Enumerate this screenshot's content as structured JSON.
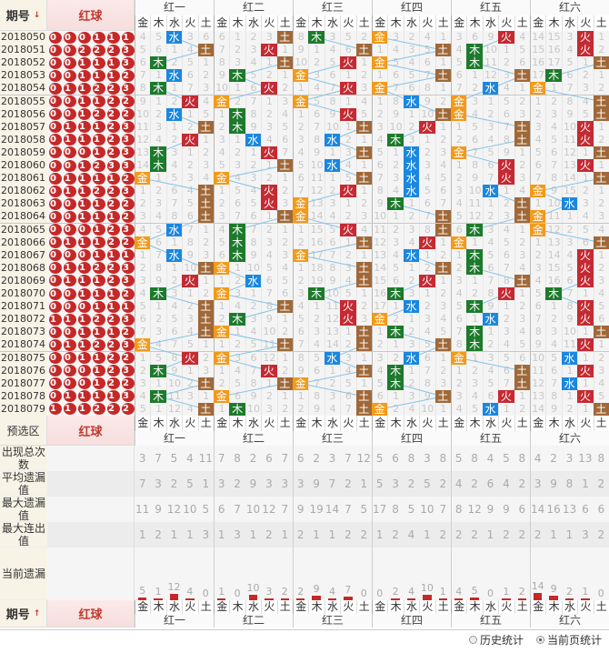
{
  "header": {
    "period_label": "期号",
    "period_sort_icon": "arrow-down-icon",
    "red_label": "红球",
    "groups": [
      "红一",
      "红二",
      "红三",
      "红四",
      "红五",
      "红六"
    ],
    "elements": [
      "金",
      "木",
      "水",
      "火",
      "土"
    ]
  },
  "element_colors": {
    "金": "#f29a1a",
    "木": "#1d7a2c",
    "水": "#1a87e0",
    "火": "#c52a32",
    "土": "#a06838"
  },
  "trend_line_color": "#86c3e6",
  "first_row_omissions": [
    [
      4,
      5,
      0,
      3,
      6
    ],
    [
      6,
      1,
      2,
      3,
      0
    ],
    [
      8,
      0,
      3,
      5,
      2
    ],
    [
      0,
      3,
      2,
      4,
      1
    ],
    [
      3,
      6,
      9,
      0,
      4
    ],
    [
      14,
      15,
      3,
      0,
      1
    ]
  ],
  "rows": [
    {
      "period": "2018050",
      "balls": "000111",
      "hits": "水土木金火火"
    },
    {
      "period": "2018051",
      "balls": "002223",
      "hits": "土火土土木火"
    },
    {
      "period": "2018052",
      "balls": "001113",
      "hits": "木土火金木土"
    },
    {
      "period": "2018053",
      "balls": "001112",
      "hits": "水木金土土木"
    },
    {
      "period": "2018054",
      "balls": "011223",
      "hits": "木火火金水金"
    },
    {
      "period": "2018055",
      "balls": "001122",
      "hits": "火金金水金土"
    },
    {
      "period": "2018056",
      "balls": "001222",
      "hits": "水木火土金土"
    },
    {
      "period": "2018057",
      "balls": "011123",
      "hits": "土木土火土火"
    },
    {
      "period": "2018058",
      "balls": "011123",
      "hits": "火水水木土火"
    },
    {
      "period": "2018059",
      "balls": "000123",
      "hits": "木火土水金土"
    },
    {
      "period": "2018060",
      "balls": "001233",
      "hits": "木土水水火火"
    },
    {
      "period": "2018061",
      "balls": "011112",
      "hits": "金金土水火土"
    },
    {
      "period": "2018062",
      "balls": "011223",
      "hits": "土火火水水金"
    },
    {
      "period": "2018063",
      "balls": "001122",
      "hits": "土火金木土水"
    },
    {
      "period": "2018064",
      "balls": "001112",
      "hits": "土土金土土金"
    },
    {
      "period": "2018065",
      "balls": "000123",
      "hits": "水木火土木金"
    },
    {
      "period": "2018066",
      "balls": "011122",
      "hits": "金木土火金土"
    },
    {
      "period": "2018067",
      "balls": "000111",
      "hits": "水木金水木火"
    },
    {
      "period": "2018068",
      "balls": "011223",
      "hits": "土金土土木火"
    },
    {
      "period": "2018069",
      "balls": "011123",
      "hits": "火水土火土火"
    },
    {
      "period": "2018070",
      "balls": "001112",
      "hits": "木金木木火木"
    },
    {
      "period": "2018071",
      "balls": "000111",
      "hits": "土土火水木火"
    },
    {
      "period": "2018072",
      "balls": "111223",
      "hits": "土木火金水火"
    },
    {
      "period": "2018073",
      "balls": "001112",
      "hits": "土金土木木土"
    },
    {
      "period": "2018074",
      "balls": "011223",
      "hits": "金土土土木火"
    },
    {
      "period": "2018075",
      "balls": "001122",
      "hits": "火金水水金水"
    },
    {
      "period": "2018076",
      "balls": "000123",
      "hits": "木火土木土火"
    },
    {
      "period": "2018077",
      "balls": "000122",
      "hits": "土土金木土水"
    },
    {
      "period": "2018078",
      "balls": "011113",
      "hits": "木金土土火火"
    },
    {
      "period": "2018079",
      "balls": "111222",
      "hits": "土木土金水土"
    }
  ],
  "footer": {
    "preselect_label": "预选区",
    "red_label": "红球",
    "stats": [
      {
        "label": "出现总次数",
        "values": [
          3,
          7,
          5,
          4,
          11,
          7,
          8,
          2,
          6,
          7,
          6,
          2,
          3,
          7,
          12,
          5,
          6,
          8,
          3,
          8,
          5,
          8,
          4,
          5,
          8,
          4,
          2,
          3,
          13,
          8
        ]
      },
      {
        "label": "平均遗漏值",
        "values": [
          7,
          3,
          2,
          5,
          1,
          3,
          2,
          9,
          3,
          3,
          3,
          9,
          7,
          2,
          1,
          5,
          3,
          2,
          5,
          2,
          4,
          2,
          6,
          4,
          2,
          3,
          9,
          8,
          1,
          2
        ]
      },
      {
        "label": "最大遗漏值",
        "values": [
          11,
          9,
          12,
          10,
          5,
          6,
          7,
          10,
          12,
          7,
          9,
          19,
          14,
          7,
          5,
          17,
          8,
          5,
          10,
          7,
          8,
          12,
          9,
          9,
          6,
          14,
          16,
          13,
          6,
          6
        ]
      },
      {
        "label": "最大连出值",
        "values": [
          1,
          2,
          1,
          1,
          3,
          1,
          3,
          1,
          2,
          1,
          2,
          1,
          1,
          2,
          2,
          1,
          2,
          4,
          1,
          2,
          2,
          2,
          1,
          2,
          2,
          2,
          1,
          1,
          3,
          2
        ]
      }
    ],
    "current_label": "当前遗漏",
    "current_values": [
      5,
      1,
      12,
      4,
      0,
      1,
      0,
      10,
      3,
      2,
      2,
      9,
      4,
      7,
      0,
      0,
      2,
      4,
      10,
      1,
      4,
      5,
      0,
      1,
      2,
      14,
      9,
      2,
      1,
      0
    ],
    "bottom_period_label": "期号",
    "bottom_sort_icon": "arrow-up-icon",
    "radios": [
      {
        "label": "历史统计",
        "checked": false
      },
      {
        "label": "当前页统计",
        "checked": true
      }
    ]
  }
}
